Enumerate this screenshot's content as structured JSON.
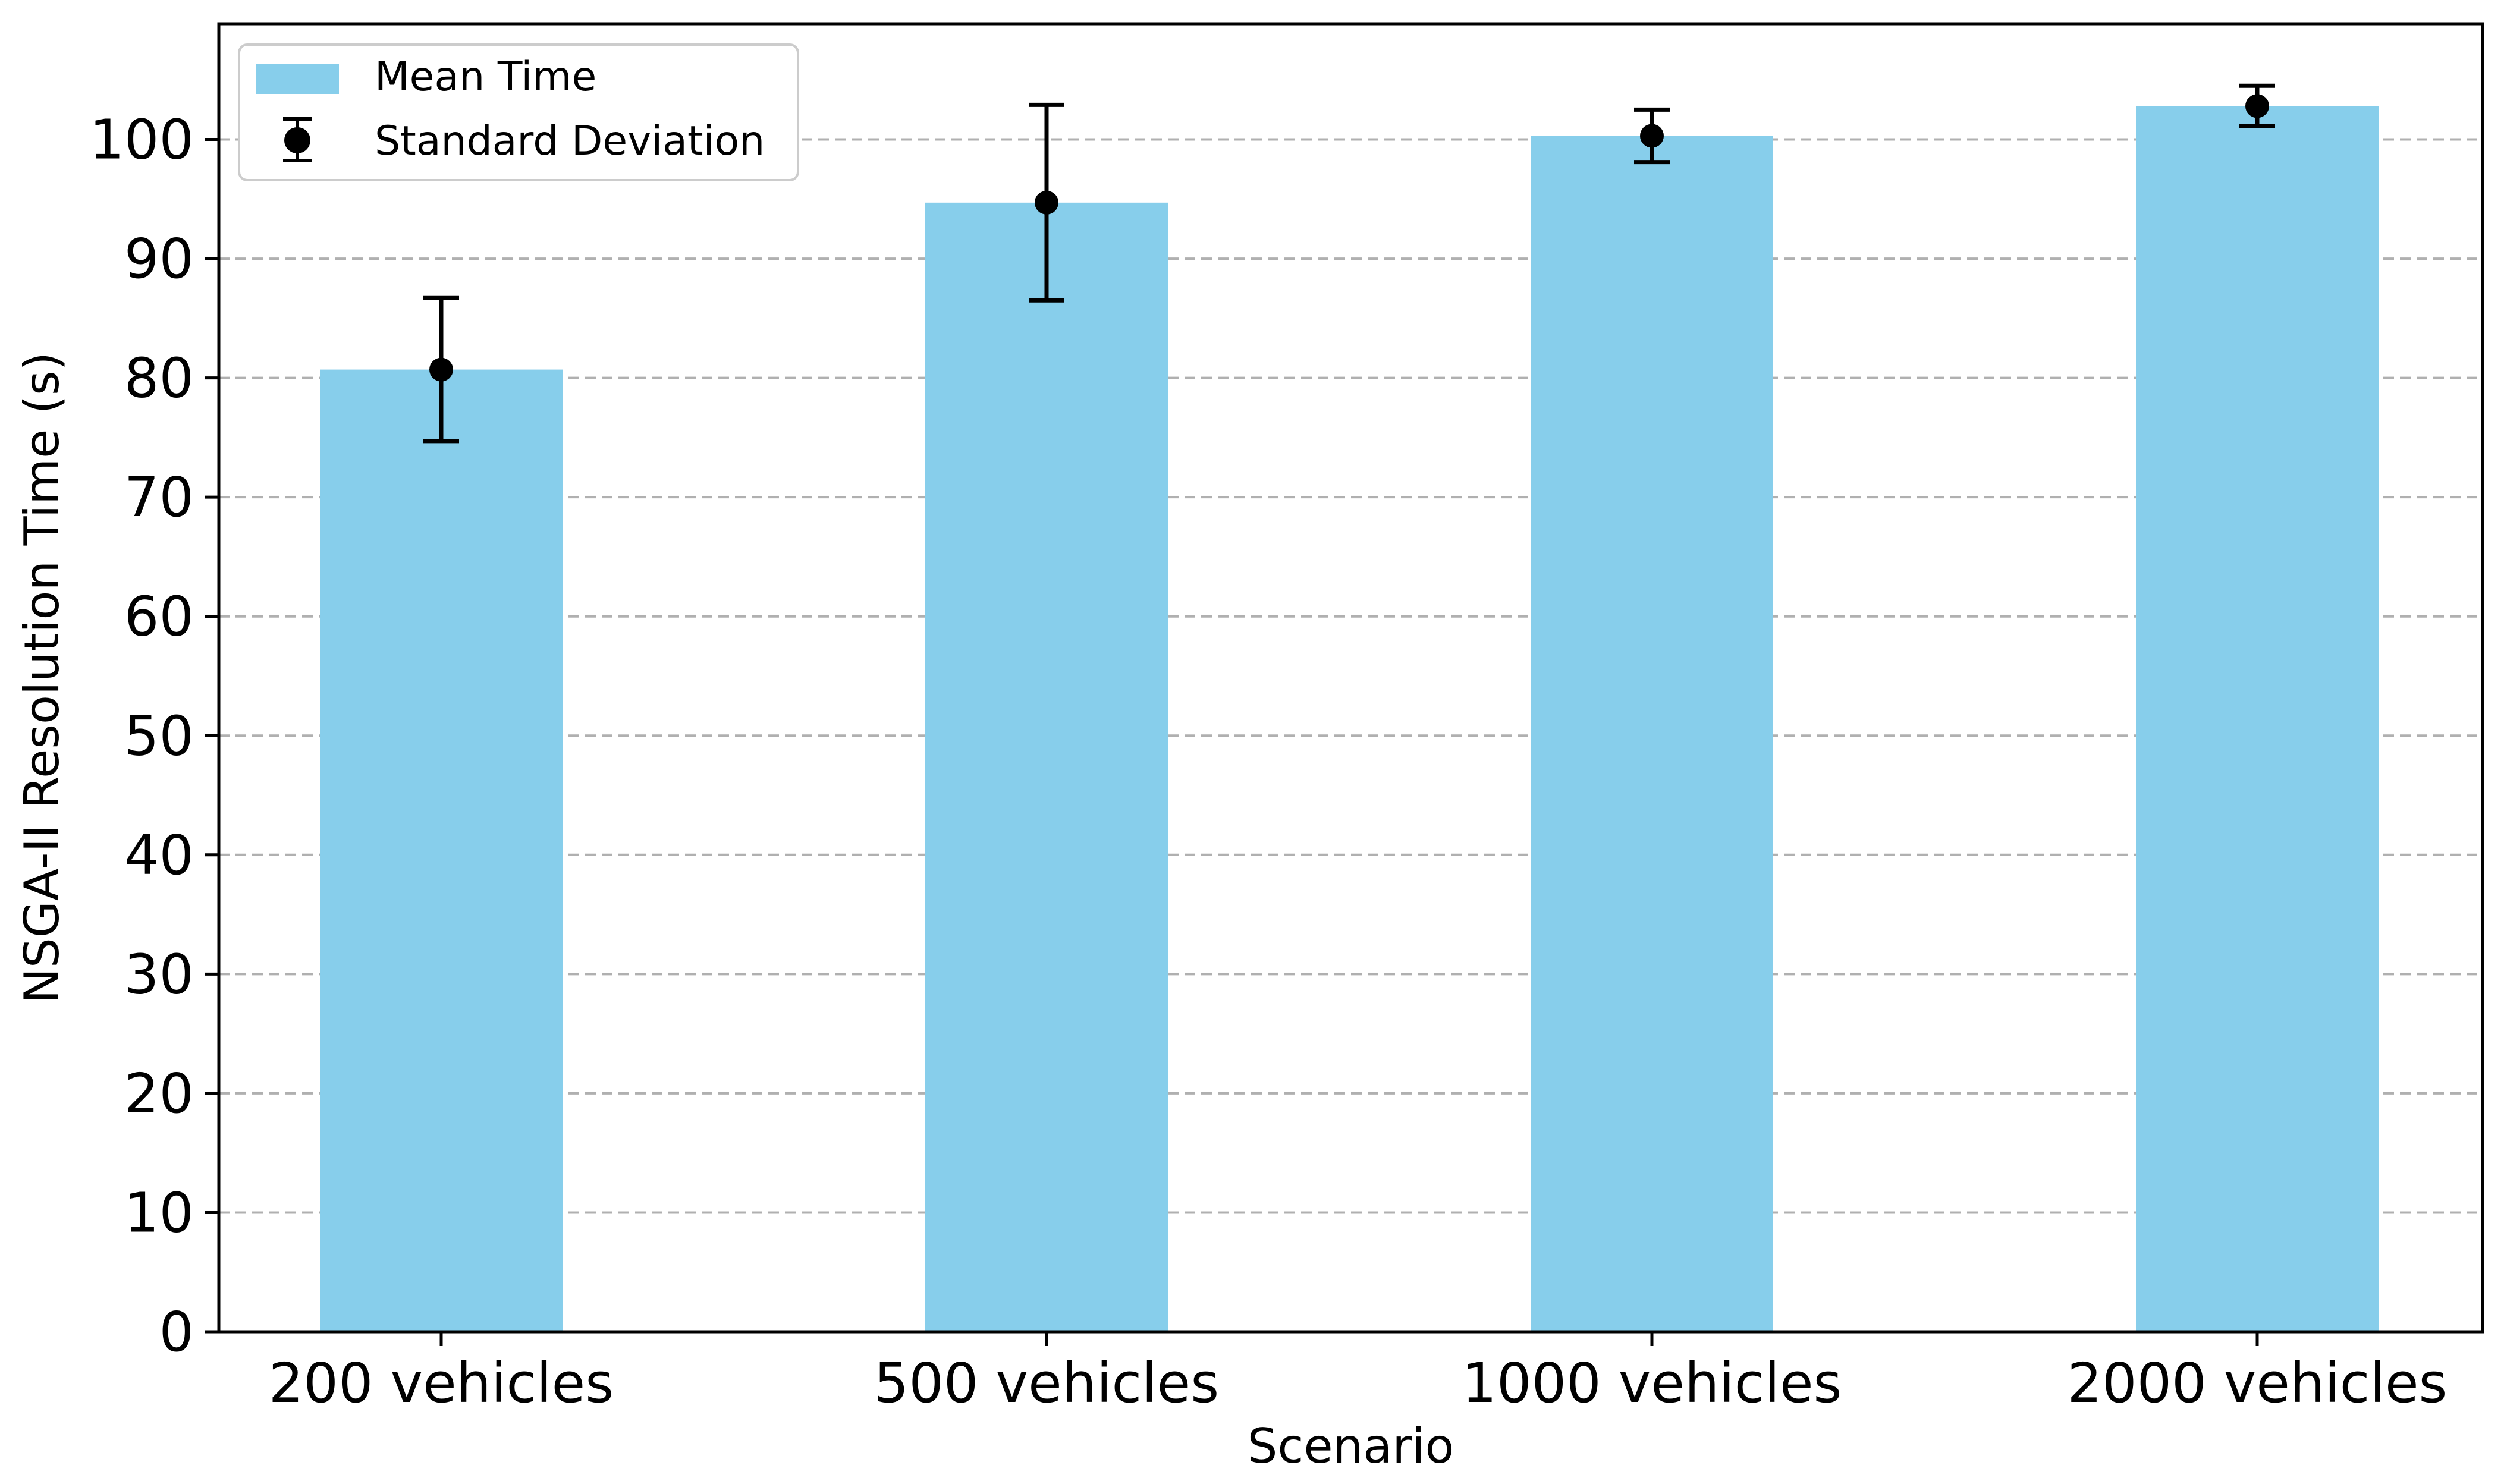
{
  "chart_data": {
    "type": "bar",
    "title": "",
    "xlabel": "Scenario",
    "ylabel": "NSGA-II Resolution Time (s)",
    "categories": [
      "200 vehicles",
      "500 vehicles",
      "1000 vehicles",
      "2000 vehicles"
    ],
    "series": [
      {
        "name": "Mean Time",
        "values": [
          80.7,
          94.7,
          100.3,
          102.8
        ],
        "error": [
          6.0,
          8.2,
          2.2,
          1.7
        ],
        "error_label": "Standard Deviation"
      }
    ],
    "ylim": [
      0,
      109.7
    ],
    "yticks": [
      0,
      10,
      20,
      30,
      40,
      50,
      60,
      70,
      80,
      90,
      100
    ],
    "grid": "y-dashed",
    "legend_position": "top-left",
    "legend": [
      "Mean Time",
      "Standard Deviation"
    ],
    "colors": {
      "bar": "#87CEEB",
      "error": "#000000",
      "grid": "#b0b0b0",
      "axis": "#000000"
    }
  }
}
